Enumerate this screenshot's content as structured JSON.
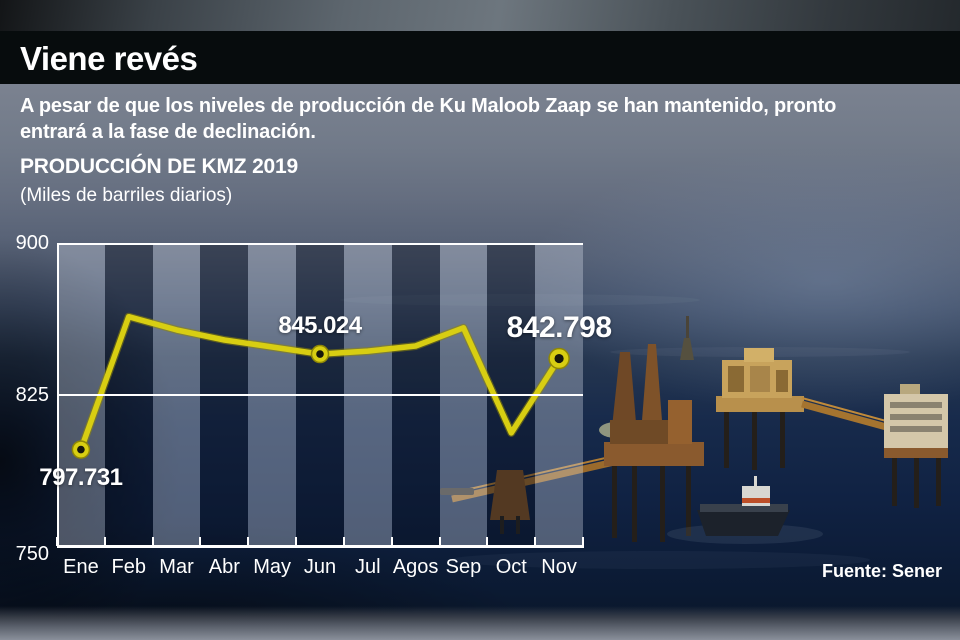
{
  "header": {
    "title": "Viene revés"
  },
  "intro": {
    "line1": "A pesar de que los niveles de producción de Ku Maloob Zaap se han mantenido, pronto",
    "line2": "entrará a la fase de declinación."
  },
  "chart_heading": {
    "title": "PRODUCCIÓN DE KMZ 2019",
    "subtitle": "(Miles de barriles diarios)"
  },
  "source": {
    "label": "Fuente: Sener"
  },
  "colors": {
    "line": "#d8ce12",
    "line_edge": "#8f8706",
    "marker_center": "#17170c",
    "axis": "#ffffff",
    "title_bar_bg": "#070c0d"
  },
  "chart_data": {
    "type": "line",
    "title": "PRODUCCIÓN DE KMZ 2019",
    "ylabel": "(Miles de barriles diarios)",
    "categories": [
      "Ene",
      "Feb",
      "Mar",
      "Abr",
      "May",
      "Jun",
      "Jul",
      "Agos",
      "Sep",
      "Oct",
      "Nov"
    ],
    "values": [
      797.731,
      863.5,
      857.0,
      852.0,
      848.5,
      845.024,
      846.5,
      849.0,
      858.0,
      806.0,
      842.798
    ],
    "labeled_points": [
      {
        "index": 0,
        "label": "797.731",
        "placement": "below",
        "emphasis": false
      },
      {
        "index": 5,
        "label": "845.024",
        "placement": "above",
        "emphasis": false
      },
      {
        "index": 10,
        "label": "842.798",
        "placement": "above",
        "emphasis": true
      }
    ],
    "yticks": [
      750,
      825,
      900
    ],
    "ylim": [
      750,
      900
    ],
    "grid": "horizontal",
    "legend": "none"
  }
}
